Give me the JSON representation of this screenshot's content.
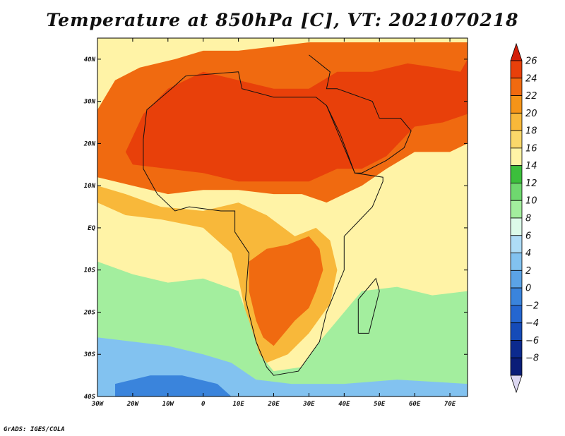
{
  "title": "Temperature at 850hPa [C], VT: 2021070218",
  "credit": "GrADS: IGES/COLA",
  "map": {
    "lon_range": [
      -30,
      75
    ],
    "lat_range": [
      -40,
      45
    ],
    "xticks": [
      {
        "lon": -30,
        "label": "30W"
      },
      {
        "lon": -20,
        "label": "20W"
      },
      {
        "lon": -10,
        "label": "10W"
      },
      {
        "lon": 0,
        "label": "0"
      },
      {
        "lon": 10,
        "label": "10E"
      },
      {
        "lon": 20,
        "label": "20E"
      },
      {
        "lon": 30,
        "label": "30E"
      },
      {
        "lon": 40,
        "label": "40E"
      },
      {
        "lon": 50,
        "label": "50E"
      },
      {
        "lon": 60,
        "label": "60E"
      },
      {
        "lon": 70,
        "label": "70E"
      }
    ],
    "yticks": [
      {
        "lat": 40,
        "label": "40N"
      },
      {
        "lat": 30,
        "label": "30N"
      },
      {
        "lat": 20,
        "label": "20N"
      },
      {
        "lat": 10,
        "label": "10N"
      },
      {
        "lat": 0,
        "label": "EQ"
      },
      {
        "lat": -10,
        "label": "10S"
      },
      {
        "lat": -20,
        "label": "20S"
      },
      {
        "lat": -30,
        "label": "30S"
      },
      {
        "lat": -40,
        "label": "40S"
      }
    ],
    "background_color": "#fff3a6"
  },
  "colorbar": {
    "levels": [
      {
        "label": "26",
        "value": 26
      },
      {
        "label": "24",
        "value": 24
      },
      {
        "label": "22",
        "value": 22
      },
      {
        "label": "20",
        "value": 20
      },
      {
        "label": "18",
        "value": 18
      },
      {
        "label": "16",
        "value": 16
      },
      {
        "label": "14",
        "value": 14
      },
      {
        "label": "12",
        "value": 12
      },
      {
        "label": "10",
        "value": 10
      },
      {
        "label": "8",
        "value": 8
      },
      {
        "label": "6",
        "value": 6
      },
      {
        "label": "4",
        "value": 4
      },
      {
        "label": "2",
        "value": 2
      },
      {
        "label": "0",
        "value": 0
      },
      {
        "label": "−2",
        "value": -2
      },
      {
        "label": "−4",
        "value": -4
      },
      {
        "label": "−6",
        "value": -6
      },
      {
        "label": "−8",
        "value": -8
      }
    ],
    "colors_top_to_bottom": [
      "#d41e08",
      "#e8400a",
      "#f06a10",
      "#f59418",
      "#f8b83a",
      "#fbd86a",
      "#fff3a6",
      "#3cbf3c",
      "#6fd86f",
      "#a3ee9e",
      "#dcfbe9",
      "#aedcf6",
      "#82c2f0",
      "#5ba3e6",
      "#3a84dc",
      "#2466d0",
      "#154bb8",
      "#0c2a8e",
      "#0a1d78",
      "#ddd8f2"
    ]
  },
  "chart_data": {
    "type": "heatmap",
    "title": "Temperature at 850hPa [C], VT: 2021070218",
    "xlabel": "",
    "ylabel": "",
    "xlim": [
      -30,
      75
    ],
    "ylim": [
      -40,
      45
    ],
    "levels": [
      26,
      24,
      22,
      20,
      18,
      16,
      14,
      12,
      10,
      8,
      6,
      4,
      2,
      0,
      -2,
      -4,
      -6,
      -8
    ],
    "regions": [
      {
        "name": "",
        "value_range": [
          26,
          28
        ],
        "polygon": [
          [
            -22,
            18
          ],
          [
            -17,
            27
          ],
          [
            -10,
            33
          ],
          [
            0,
            37
          ],
          [
            10,
            35
          ],
          [
            20,
            33
          ],
          [
            30,
            33
          ],
          [
            38,
            37
          ],
          [
            48,
            37
          ],
          [
            58,
            39
          ],
          [
            66,
            38
          ],
          [
            73,
            37
          ],
          [
            75,
            40
          ],
          [
            75,
            27
          ],
          [
            68,
            25
          ],
          [
            60,
            24
          ],
          [
            52,
            17
          ],
          [
            45,
            14
          ],
          [
            38,
            14
          ],
          [
            30,
            11
          ],
          [
            20,
            11
          ],
          [
            10,
            11
          ],
          [
            0,
            13
          ],
          [
            -10,
            14
          ],
          [
            -20,
            15
          ]
        ]
      },
      {
        "name": "",
        "value_range": [
          22,
          26
        ],
        "polygon": [
          [
            -30,
            28
          ],
          [
            -25,
            35
          ],
          [
            -18,
            38
          ],
          [
            -8,
            40
          ],
          [
            0,
            42
          ],
          [
            10,
            42
          ],
          [
            20,
            43
          ],
          [
            30,
            44
          ],
          [
            40,
            44
          ],
          [
            55,
            44
          ],
          [
            65,
            44
          ],
          [
            75,
            44
          ],
          [
            75,
            20
          ],
          [
            70,
            18
          ],
          [
            60,
            18
          ],
          [
            52,
            14
          ],
          [
            45,
            10
          ],
          [
            40,
            8
          ],
          [
            35,
            6
          ],
          [
            28,
            8
          ],
          [
            20,
            8
          ],
          [
            10,
            9
          ],
          [
            0,
            9
          ],
          [
            -10,
            8
          ],
          [
            -20,
            10
          ],
          [
            -30,
            12
          ]
        ]
      },
      {
        "name": "",
        "value_range": [
          22,
          26
        ],
        "polygon": [
          [
            13,
            -8
          ],
          [
            18,
            -5
          ],
          [
            24,
            -4
          ],
          [
            30,
            -2
          ],
          [
            33,
            -5
          ],
          [
            34,
            -10
          ],
          [
            32,
            -15
          ],
          [
            30,
            -19
          ],
          [
            26,
            -22
          ],
          [
            20,
            -28
          ],
          [
            17,
            -26
          ],
          [
            15,
            -22
          ],
          [
            13,
            -15
          ]
        ]
      },
      {
        "name": "",
        "value_range": [
          18,
          22
        ],
        "polygon": [
          [
            -30,
            10
          ],
          [
            -22,
            8
          ],
          [
            -12,
            5
          ],
          [
            0,
            4
          ],
          [
            10,
            6
          ],
          [
            18,
            3
          ],
          [
            26,
            -2
          ],
          [
            32,
            0
          ],
          [
            36,
            -3
          ],
          [
            38,
            -10
          ],
          [
            36,
            -18
          ],
          [
            30,
            -25
          ],
          [
            24,
            -30
          ],
          [
            18,
            -32
          ],
          [
            14,
            -28
          ],
          [
            12,
            -20
          ],
          [
            10,
            -12
          ],
          [
            8,
            -6
          ],
          [
            0,
            0
          ],
          [
            -12,
            2
          ],
          [
            -22,
            3
          ],
          [
            -30,
            6
          ]
        ]
      },
      {
        "name": "",
        "value_range": [
          8,
          14
        ],
        "polygon": [
          [
            -30,
            -8
          ],
          [
            -20,
            -11
          ],
          [
            -10,
            -13
          ],
          [
            0,
            -12
          ],
          [
            10,
            -15
          ],
          [
            13,
            -22
          ],
          [
            16,
            -30
          ],
          [
            20,
            -34
          ],
          [
            28,
            -33
          ],
          [
            33,
            -27
          ],
          [
            38,
            -22
          ],
          [
            45,
            -15
          ],
          [
            55,
            -14
          ],
          [
            65,
            -16
          ],
          [
            75,
            -15
          ],
          [
            75,
            -40
          ],
          [
            -30,
            -40
          ]
        ]
      },
      {
        "name": "",
        "value_range": [
          2,
          8
        ],
        "polygon": [
          [
            -30,
            -26
          ],
          [
            -20,
            -27
          ],
          [
            -10,
            -28
          ],
          [
            0,
            -30
          ],
          [
            8,
            -32
          ],
          [
            15,
            -36
          ],
          [
            25,
            -37
          ],
          [
            40,
            -37
          ],
          [
            55,
            -36
          ],
          [
            75,
            -37
          ],
          [
            75,
            -40
          ],
          [
            -30,
            -40
          ]
        ]
      },
      {
        "name": "",
        "value_range": [
          -2,
          2
        ],
        "polygon": [
          [
            -25,
            -37
          ],
          [
            -15,
            -35
          ],
          [
            -6,
            -35
          ],
          [
            4,
            -37
          ],
          [
            8,
            -40
          ],
          [
            -25,
            -40
          ]
        ]
      }
    ]
  }
}
